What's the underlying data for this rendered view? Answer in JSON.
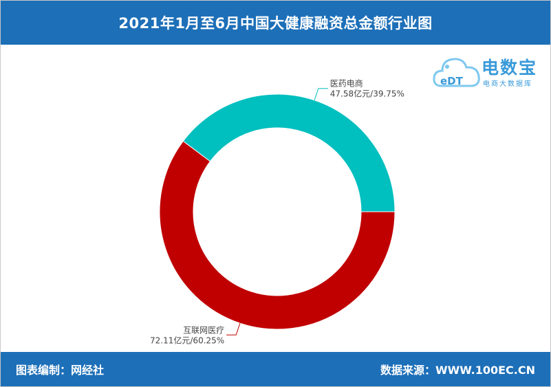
{
  "header": {
    "title": "2021年1月至6月中国大健康融资总金额行业图"
  },
  "footer": {
    "left": "图表编制：网经社",
    "right": "数据来源：WWW.100EC.CN"
  },
  "logo": {
    "badge_text": "eDT",
    "name": "电数宝",
    "subtitle": "电商大数据库",
    "color": "#3a9ad9"
  },
  "chart_data": {
    "type": "pie",
    "donut": true,
    "slices": [
      {
        "name": "医药电商",
        "value": 47.58,
        "unit": "亿元",
        "percent": 39.75,
        "label": "47.58亿元/39.75%",
        "color": "#00bfbf"
      },
      {
        "name": "互联网医疗",
        "value": 72.11,
        "unit": "亿元",
        "percent": 60.25,
        "label": "72.11亿元/60.25%",
        "color": "#c00000"
      }
    ]
  }
}
